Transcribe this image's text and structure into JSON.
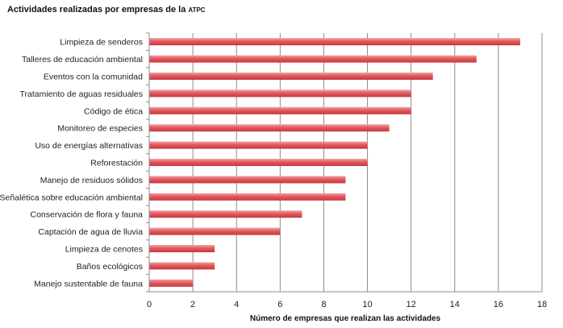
{
  "chart_data": {
    "type": "bar",
    "orientation": "horizontal",
    "title": "Actividades realizadas por empresas de la",
    "title_suffix": "ATPC",
    "xlabel": "Número de empresas que realizan las actividades",
    "ylabel": "",
    "xlim": [
      0,
      18
    ],
    "xticks": [
      0,
      2,
      4,
      6,
      8,
      10,
      12,
      14,
      16,
      18
    ],
    "grid": true,
    "bar_color": "#e05a5e",
    "categories": [
      "Limpieza de senderos",
      "Talleres de educación ambiental",
      "Eventos con la comunidad",
      "Tratamiento de aguas residuales",
      "Código de ética",
      "Monitoreo de especies",
      "Uso de energías alternativas",
      "Reforestación",
      "Manejo de residuos sólidos",
      "Señalética sobre educación ambiental",
      "Conservación de flora y fauna",
      "Captación de agua de lluvia",
      "Limpieza de cenotes",
      "Baños ecológicos",
      "Manejo sustentable de fauna"
    ],
    "values": [
      17,
      15,
      13,
      12,
      12,
      11,
      10,
      10,
      9,
      9,
      7,
      6,
      3,
      3,
      2
    ]
  }
}
